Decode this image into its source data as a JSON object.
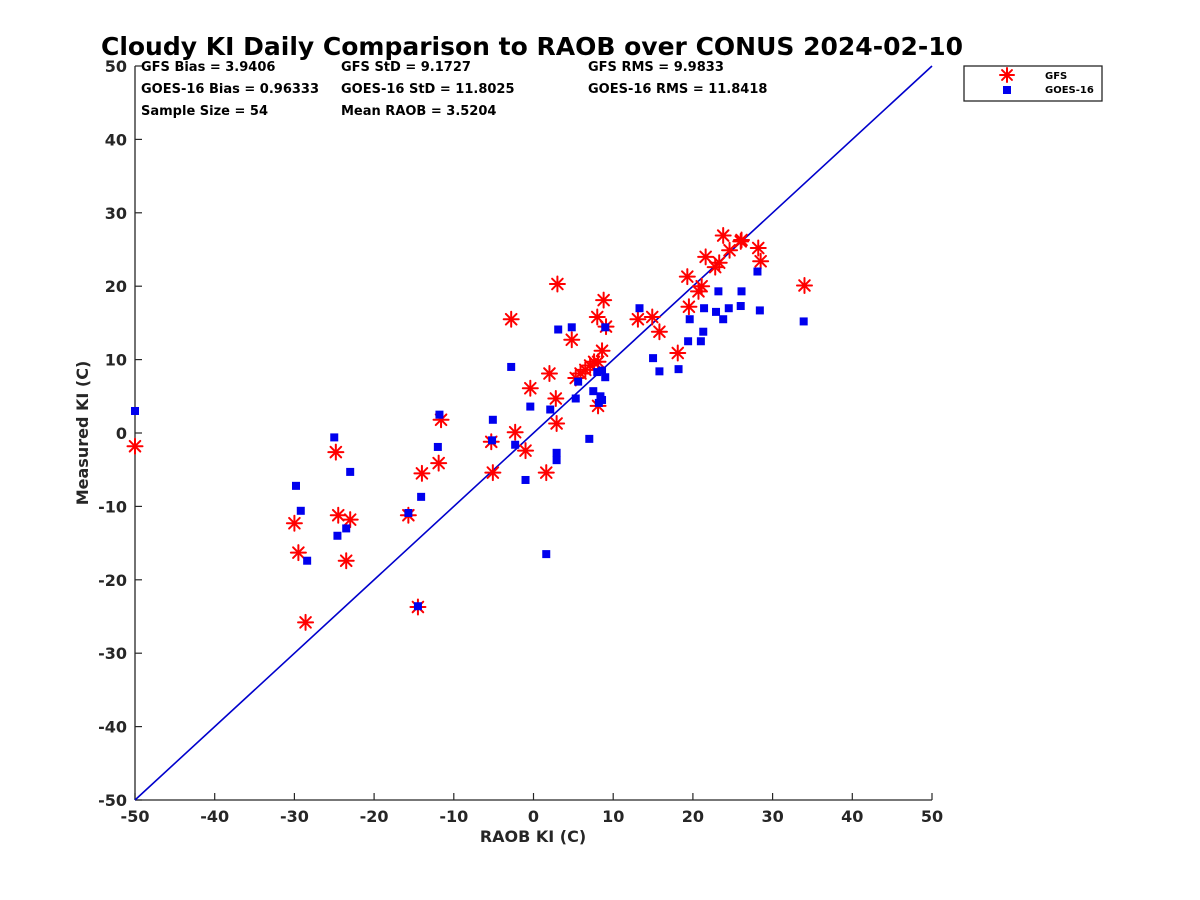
{
  "chart_data": {
    "type": "scatter",
    "title": "Cloudy KI Daily Comparison to RAOB over CONUS 2024-02-10",
    "xlabel": "RAOB KI (C)",
    "ylabel": "Measured KI (C)",
    "xlim": [
      -50,
      50
    ],
    "ylim": [
      -50,
      50
    ],
    "xticks": [
      -50,
      -40,
      -30,
      -20,
      -10,
      0,
      10,
      20,
      30,
      40,
      50
    ],
    "yticks": [
      -50,
      -40,
      -30,
      -20,
      -10,
      0,
      10,
      20,
      30,
      40,
      50
    ],
    "xtick_labels": [
      "-50",
      "-40",
      "-30",
      "-20",
      "-10",
      "0",
      "10",
      "20",
      "30",
      "40",
      "50"
    ],
    "ytick_labels": [
      "-50",
      "-40",
      "-30",
      "-20",
      "-10",
      "0",
      "10",
      "20",
      "30",
      "40",
      "50"
    ],
    "grid": false,
    "legend_position": "top-right, outside plot",
    "reference_line": {
      "from": [
        -50,
        -50
      ],
      "to": [
        50,
        50
      ],
      "color": "#0000cc"
    },
    "stats": [
      {
        "text": "GFS Bias = 3.9406"
      },
      {
        "text": "GFS StD = 9.1727"
      },
      {
        "text": "GFS RMS = 9.9833"
      },
      {
        "text": "GOES-16 Bias = 0.96333"
      },
      {
        "text": "GOES-16 StD = 11.8025"
      },
      {
        "text": "GOES-16 RMS = 11.8418"
      },
      {
        "text": "Sample Size = 54"
      },
      {
        "text": "Mean RAOB = 3.5204"
      }
    ],
    "series": [
      {
        "name": "GFS",
        "marker": "asterisk",
        "color": "#ff0000",
        "points": [
          [
            -50,
            -1.8
          ],
          [
            -30,
            -12.3
          ],
          [
            -29.5,
            -16.3
          ],
          [
            -28.6,
            -25.8
          ],
          [
            -24.8,
            -2.6
          ],
          [
            -24.5,
            -11.2
          ],
          [
            -23.5,
            -17.4
          ],
          [
            -23,
            -11.8
          ],
          [
            -15.7,
            -11.2
          ],
          [
            -14.5,
            -23.7
          ],
          [
            -14,
            -5.5
          ],
          [
            -11.9,
            -4.1
          ],
          [
            -11.6,
            1.8
          ],
          [
            -5.3,
            -1.2
          ],
          [
            -5.1,
            -5.4
          ],
          [
            -2.8,
            15.5
          ],
          [
            -2.3,
            0.1
          ],
          [
            -1,
            -2.4
          ],
          [
            -0.4,
            6.1
          ],
          [
            1.6,
            -5.4
          ],
          [
            2,
            8.1
          ],
          [
            2.8,
            4.7
          ],
          [
            2.9,
            1.3
          ],
          [
            3,
            20.3
          ],
          [
            4.8,
            12.7
          ],
          [
            5.3,
            7.5
          ],
          [
            5.9,
            8.1
          ],
          [
            6.5,
            8.6
          ],
          [
            7.1,
            9.2
          ],
          [
            7.6,
            9.7
          ],
          [
            8.1,
            9.7
          ],
          [
            8.1,
            3.7
          ],
          [
            8,
            15.8
          ],
          [
            8.6,
            11.2
          ],
          [
            8.8,
            18.1
          ],
          [
            9.1,
            14.5
          ],
          [
            13.1,
            15.5
          ],
          [
            14.9,
            15.8
          ],
          [
            15.8,
            13.8
          ],
          [
            18.1,
            10.9
          ],
          [
            19.3,
            21.3
          ],
          [
            19.5,
            17.2
          ],
          [
            20.7,
            19.3
          ],
          [
            21.1,
            20
          ],
          [
            21.6,
            24
          ],
          [
            22.8,
            22.6
          ],
          [
            23.3,
            23.2
          ],
          [
            23.8,
            26.9
          ],
          [
            24.6,
            24.9
          ],
          [
            26.1,
            26.3
          ],
          [
            28.2,
            25.2
          ],
          [
            28.5,
            23.4
          ],
          [
            34,
            20.1
          ],
          [
            26,
            26.1
          ]
        ]
      },
      {
        "name": "GOES-16",
        "marker": "square",
        "color": "#0000ee",
        "points": [
          [
            -50,
            3
          ],
          [
            -29.8,
            -7.2
          ],
          [
            -29.2,
            -10.6
          ],
          [
            -28.4,
            -17.4
          ],
          [
            -25,
            -0.6
          ],
          [
            -24.6,
            -14
          ],
          [
            -23.5,
            -13
          ],
          [
            -23,
            -5.3
          ],
          [
            -15.7,
            -10.9
          ],
          [
            -14.5,
            -23.6
          ],
          [
            -14.1,
            -8.7
          ],
          [
            -12,
            -1.9
          ],
          [
            -11.8,
            2.5
          ],
          [
            -5.2,
            -1
          ],
          [
            -5.1,
            1.8
          ],
          [
            -2.8,
            9
          ],
          [
            -2.3,
            -1.6
          ],
          [
            -1,
            -6.4
          ],
          [
            -0.4,
            3.6
          ],
          [
            1.6,
            -16.5
          ],
          [
            2.1,
            3.2
          ],
          [
            2.9,
            -2.7
          ],
          [
            2.9,
            -3.7
          ],
          [
            3.1,
            14.1
          ],
          [
            4.8,
            14.4
          ],
          [
            5.3,
            4.7
          ],
          [
            5.6,
            7
          ],
          [
            7,
            -0.8
          ],
          [
            7.5,
            5.7
          ],
          [
            8,
            8.3
          ],
          [
            8.2,
            4.1
          ],
          [
            8.4,
            5
          ],
          [
            8.6,
            4.5
          ],
          [
            9,
            7.6
          ],
          [
            9,
            14.4
          ],
          [
            13.3,
            17
          ],
          [
            15,
            10.2
          ],
          [
            15.8,
            8.4
          ],
          [
            18.2,
            8.7
          ],
          [
            19.4,
            12.5
          ],
          [
            19.6,
            15.5
          ],
          [
            21,
            12.5
          ],
          [
            21.3,
            13.8
          ],
          [
            21.4,
            17
          ],
          [
            22.9,
            16.5
          ],
          [
            23.2,
            19.3
          ],
          [
            23.8,
            15.5
          ],
          [
            24.5,
            17
          ],
          [
            26,
            17.3
          ],
          [
            26.1,
            19.3
          ],
          [
            28.1,
            22
          ],
          [
            28.4,
            16.7
          ],
          [
            33.9,
            15.2
          ],
          [
            8.6,
            8.5
          ]
        ]
      }
    ]
  }
}
